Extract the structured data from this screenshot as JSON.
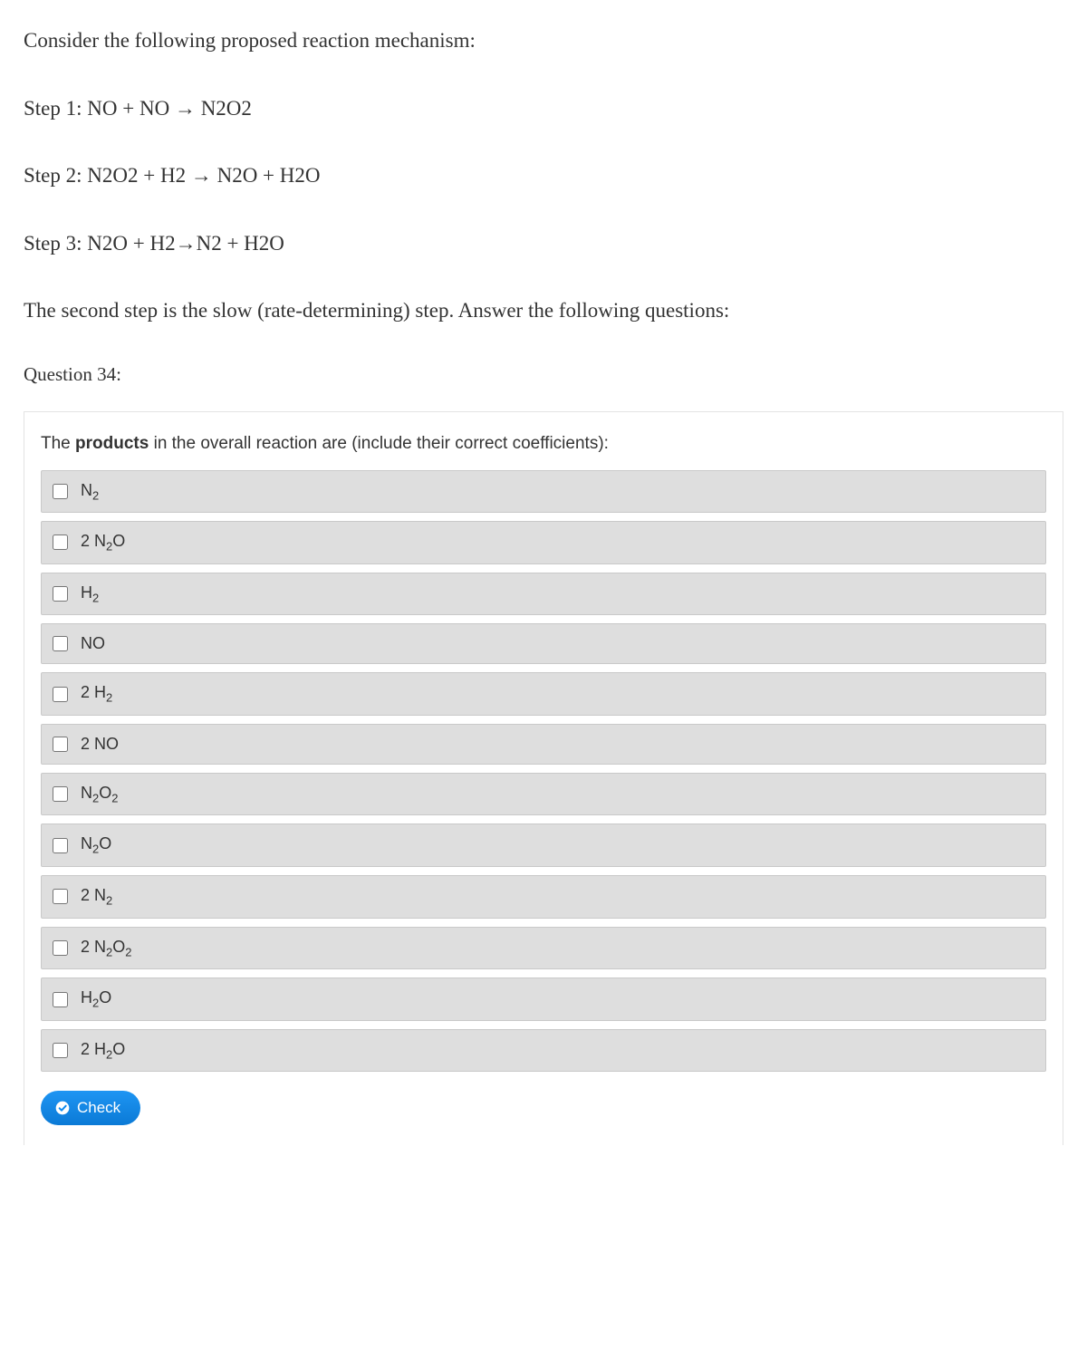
{
  "intro": {
    "line1": "Consider the following proposed reaction mechanism:",
    "step1": "Step 1: NO + NO → N2O2",
    "step2": "Step 2: N2O2 + H2 → N2O + H2O",
    "step3": "Step 3: N2O + H2→N2 + H2O",
    "note": "The second step is the slow (rate-determining) step.  Answer the following questions:"
  },
  "question_number": "Question 34:",
  "prompt_pre": "The ",
  "prompt_bold": "products",
  "prompt_post": " in the overall reaction are (include their correct coefficients):",
  "options": [
    {
      "html": "N<sub>2</sub>"
    },
    {
      "html": "2 N<sub>2</sub>O"
    },
    {
      "html": "H<sub>2</sub>"
    },
    {
      "html": "NO"
    },
    {
      "html": "2 H<sub>2</sub>"
    },
    {
      "html": "2 NO"
    },
    {
      "html": "N<sub>2</sub>O<sub>2</sub>"
    },
    {
      "html": "N<sub>2</sub>O"
    },
    {
      "html": "2 N<sub>2</sub>"
    },
    {
      "html": "2 N<sub>2</sub>O<sub>2</sub>"
    },
    {
      "html": "H<sub>2</sub>O"
    },
    {
      "html": "2 H<sub>2</sub>O"
    }
  ],
  "check_label": "Check",
  "colors": {
    "option_bg": "#dedede",
    "option_border": "#c9c9c9",
    "button_bg": "#0d8aee",
    "text": "#333333"
  }
}
